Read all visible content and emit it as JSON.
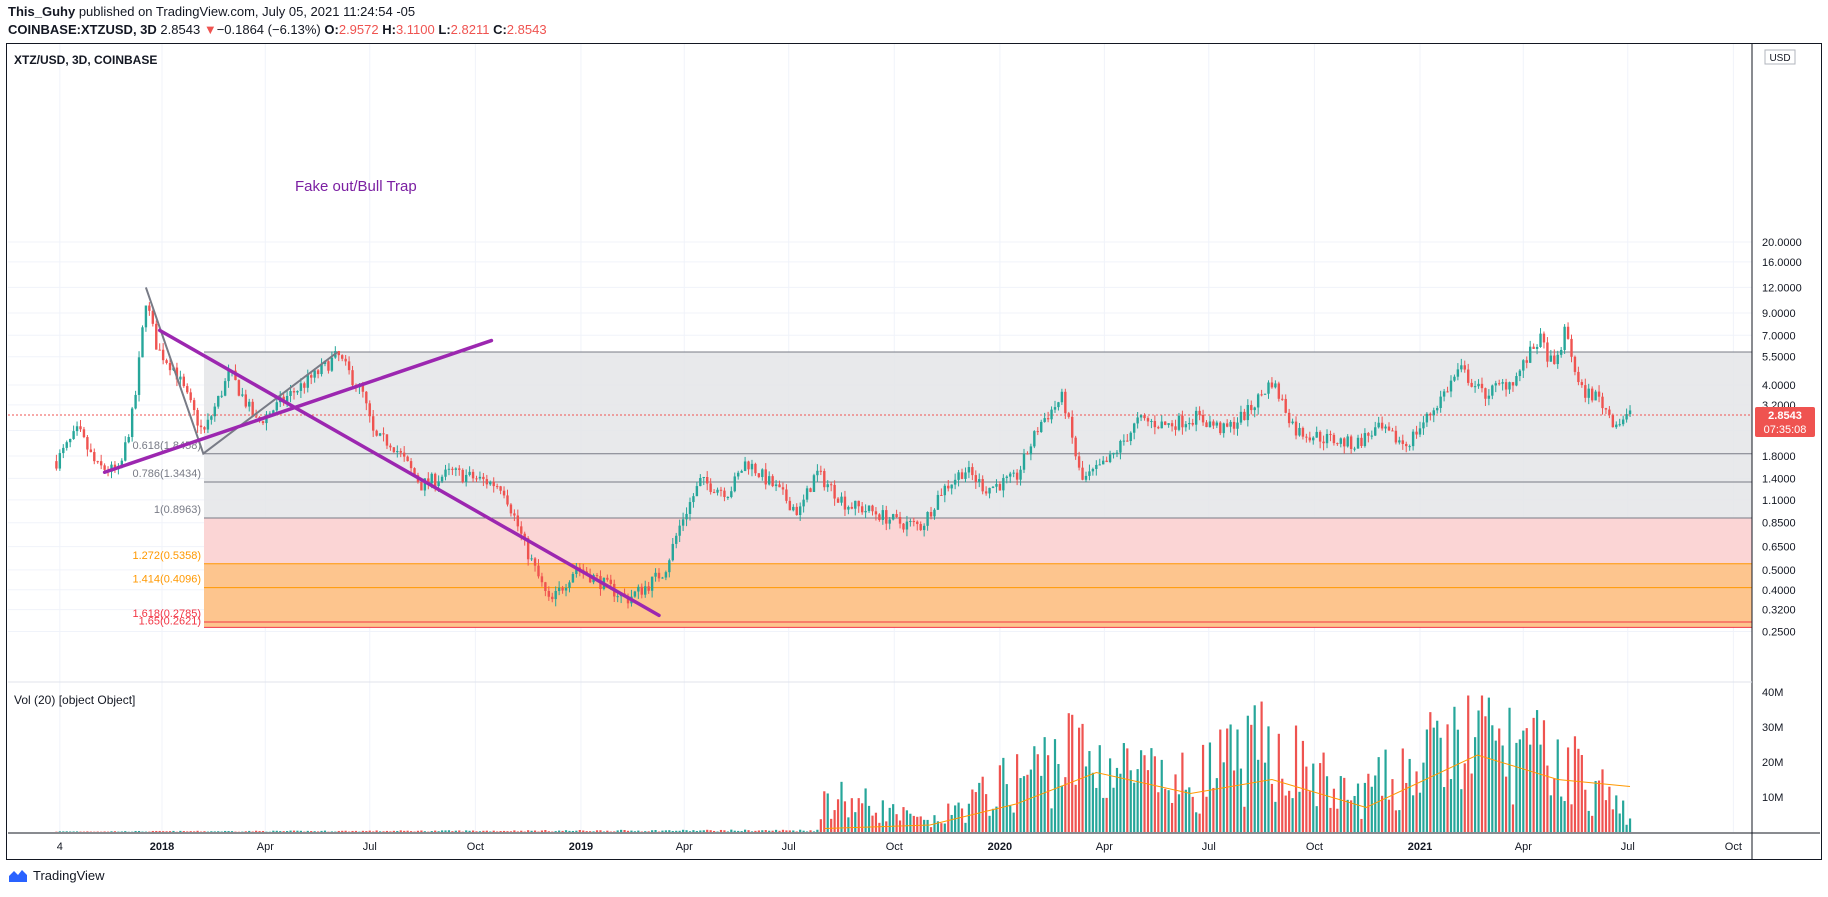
{
  "header": {
    "author": "This_Guhy",
    "published_text": "published on TradingView.com, July 05, 2021 11:24:54 -05",
    "symbol": "COINBASE:XTZUSD, 3D",
    "last": "2.8543",
    "arrow": "▼",
    "change": "−0.1864 (−6.13%)",
    "o_label": "O:",
    "o_value": "2.9572",
    "h_label": "H:",
    "h_value": "3.1100",
    "l_label": "L:",
    "l_value": "2.8211",
    "c_label": "C:",
    "c_value": "2.8543"
  },
  "pane_title": "XTZ/USD, 3D, COINBASE",
  "annotation": "Fake out/Bull Trap",
  "price_badge": {
    "price": "2.8543",
    "countdown": "07:35:08"
  },
  "currency": "USD",
  "volume_label": "Vol (20) [object Object]",
  "footer": {
    "brand": "TradingView"
  },
  "colors": {
    "up": "#26a69a",
    "down": "#ef5350",
    "trend": "#9c27b0",
    "fib_orange": "#ff9800",
    "fib_red": "#f23645"
  },
  "chart_data": {
    "type": "candlestick",
    "scale": "log",
    "price_ticks": [
      "20.0000",
      "16.0000",
      "12.0000",
      "9.0000",
      "7.0000",
      "5.5000",
      "4.0000",
      "3.2000",
      "2.4000",
      "1.8000",
      "1.4000",
      "1.1000",
      "0.8500",
      "0.6500",
      "0.5000",
      "0.4000",
      "0.3200",
      "0.2500"
    ],
    "x_ticks": [
      "4",
      "2018",
      "Apr",
      "Jul",
      "Oct",
      "2019",
      "Apr",
      "Jul",
      "Oct",
      "2020",
      "Apr",
      "Jul",
      "Oct",
      "2021",
      "Apr",
      "Jul",
      "Oct"
    ],
    "volume_ticks": [
      "40M",
      "30M",
      "20M",
      "10M"
    ],
    "fib_levels": [
      {
        "label": "0.618(1.8458)",
        "value": 1.8458
      },
      {
        "label": "0.786(1.3434)",
        "value": 1.3434
      },
      {
        "label": "1(0.8963)",
        "value": 0.8963
      },
      {
        "label": "1.272(0.5358)",
        "value": 0.5358
      },
      {
        "label": "1.414(0.4096)",
        "value": 0.4096
      },
      {
        "label": "1.618(0.2785)",
        "value": 0.2785
      },
      {
        "label": "1.65(0.2621)",
        "value": 0.2621
      }
    ],
    "fib_top": 5.8,
    "swing_points": [
      {
        "date": "2017-12-18",
        "price": 12.0
      },
      {
        "date": "2018-02-06",
        "price": 1.85
      },
      {
        "date": "2018-06-03",
        "price": 5.8
      }
    ],
    "trendlines": [
      {
        "name": "downtrend",
        "from": {
          "date": "2017-12-30",
          "price": 7.4
        },
        "to": {
          "date": "2019-03-10",
          "price": 0.3
        }
      },
      {
        "name": "bull-trap",
        "from": {
          "date": "2017-11-12",
          "price": 1.5
        },
        "to": {
          "date": "2018-10-15",
          "price": 6.6
        }
      }
    ],
    "closes": [
      {
        "date": "2017-10-01",
        "price": 1.7
      },
      {
        "date": "2017-10-20",
        "price": 2.4
      },
      {
        "date": "2017-11-05",
        "price": 1.6
      },
      {
        "date": "2017-11-25",
        "price": 1.5
      },
      {
        "date": "2017-12-08",
        "price": 3.2
      },
      {
        "date": "2017-12-18",
        "price": 10.5
      },
      {
        "date": "2017-12-28",
        "price": 6.0
      },
      {
        "date": "2018-01-12",
        "price": 4.8
      },
      {
        "date": "2018-02-06",
        "price": 2.3
      },
      {
        "date": "2018-03-01",
        "price": 4.6
      },
      {
        "date": "2018-03-25",
        "price": 2.6
      },
      {
        "date": "2018-04-20",
        "price": 3.5
      },
      {
        "date": "2018-05-15",
        "price": 4.5
      },
      {
        "date": "2018-06-03",
        "price": 5.6
      },
      {
        "date": "2018-06-25",
        "price": 3.6
      },
      {
        "date": "2018-07-05",
        "price": 2.2
      },
      {
        "date": "2018-07-20",
        "price": 2.1
      },
      {
        "date": "2018-08-15",
        "price": 1.3
      },
      {
        "date": "2018-09-10",
        "price": 1.5
      },
      {
        "date": "2018-10-01",
        "price": 1.4
      },
      {
        "date": "2018-10-25",
        "price": 1.28
      },
      {
        "date": "2018-11-15",
        "price": 0.62
      },
      {
        "date": "2018-12-05",
        "price": 0.34
      },
      {
        "date": "2018-12-28",
        "price": 0.52
      },
      {
        "date": "2019-01-20",
        "price": 0.43
      },
      {
        "date": "2019-02-10",
        "price": 0.36
      },
      {
        "date": "2019-02-28",
        "price": 0.42
      },
      {
        "date": "2019-03-15",
        "price": 0.5
      },
      {
        "date": "2019-03-30",
        "price": 0.88
      },
      {
        "date": "2019-04-15",
        "price": 1.35
      },
      {
        "date": "2019-05-10",
        "price": 1.2
      },
      {
        "date": "2019-05-25",
        "price": 1.7
      },
      {
        "date": "2019-06-20",
        "price": 1.25
      },
      {
        "date": "2019-07-10",
        "price": 0.95
      },
      {
        "date": "2019-07-25",
        "price": 1.5
      },
      {
        "date": "2019-08-20",
        "price": 1.05
      },
      {
        "date": "2019-09-15",
        "price": 0.95
      },
      {
        "date": "2019-10-05",
        "price": 0.85
      },
      {
        "date": "2019-10-25",
        "price": 0.82
      },
      {
        "date": "2019-11-10",
        "price": 1.2
      },
      {
        "date": "2019-12-01",
        "price": 1.55
      },
      {
        "date": "2019-12-20",
        "price": 1.25
      },
      {
        "date": "2020-01-15",
        "price": 1.4
      },
      {
        "date": "2020-02-05",
        "price": 2.6
      },
      {
        "date": "2020-02-25",
        "price": 3.5
      },
      {
        "date": "2020-03-12",
        "price": 1.35
      },
      {
        "date": "2020-04-05",
        "price": 1.7
      },
      {
        "date": "2020-05-01",
        "price": 2.7
      },
      {
        "date": "2020-05-25",
        "price": 2.55
      },
      {
        "date": "2020-06-20",
        "price": 2.8
      },
      {
        "date": "2020-07-15",
        "price": 2.4
      },
      {
        "date": "2020-08-05",
        "price": 3.0
      },
      {
        "date": "2020-08-25",
        "price": 4.2
      },
      {
        "date": "2020-09-15",
        "price": 2.4
      },
      {
        "date": "2020-10-10",
        "price": 2.2
      },
      {
        "date": "2020-11-05",
        "price": 2.05
      },
      {
        "date": "2020-11-25",
        "price": 2.45
      },
      {
        "date": "2020-12-20",
        "price": 2.05
      },
      {
        "date": "2021-01-10",
        "price": 2.9
      },
      {
        "date": "2021-02-05",
        "price": 4.8
      },
      {
        "date": "2021-02-25",
        "price": 3.6
      },
      {
        "date": "2021-03-25",
        "price": 4.3
      },
      {
        "date": "2021-04-15",
        "price": 6.8
      },
      {
        "date": "2021-04-28",
        "price": 4.8
      },
      {
        "date": "2021-05-08",
        "price": 7.5
      },
      {
        "date": "2021-05-20",
        "price": 3.8
      },
      {
        "date": "2021-06-05",
        "price": 3.5
      },
      {
        "date": "2021-06-20",
        "price": 2.6
      },
      {
        "date": "2021-07-03",
        "price": 2.85
      }
    ],
    "volume_profile": [
      {
        "date": "2017-10-01",
        "value": 0.2
      },
      {
        "date": "2019-07-28",
        "value": 0.6
      },
      {
        "date": "2019-08-01",
        "value": 15
      },
      {
        "date": "2019-11-01",
        "value": 3
      },
      {
        "date": "2020-03-01",
        "value": 30
      },
      {
        "date": "2020-06-01",
        "value": 17
      },
      {
        "date": "2020-08-25",
        "value": 32
      },
      {
        "date": "2020-11-01",
        "value": 12
      },
      {
        "date": "2021-02-15",
        "value": 36
      },
      {
        "date": "2021-05-15",
        "value": 24
      },
      {
        "date": "2021-07-03",
        "value": 6
      }
    ],
    "volume_ma": [
      {
        "date": "2019-08-01",
        "value": 1
      },
      {
        "date": "2019-11-01",
        "value": 2
      },
      {
        "date": "2020-01-15",
        "value": 8
      },
      {
        "date": "2020-03-25",
        "value": 17
      },
      {
        "date": "2020-06-15",
        "value": 11
      },
      {
        "date": "2020-08-25",
        "value": 15
      },
      {
        "date": "2020-11-15",
        "value": 7
      },
      {
        "date": "2021-02-20",
        "value": 22
      },
      {
        "date": "2021-05-01",
        "value": 15
      },
      {
        "date": "2021-07-03",
        "value": 13
      }
    ],
    "last_price": 2.8543
  }
}
